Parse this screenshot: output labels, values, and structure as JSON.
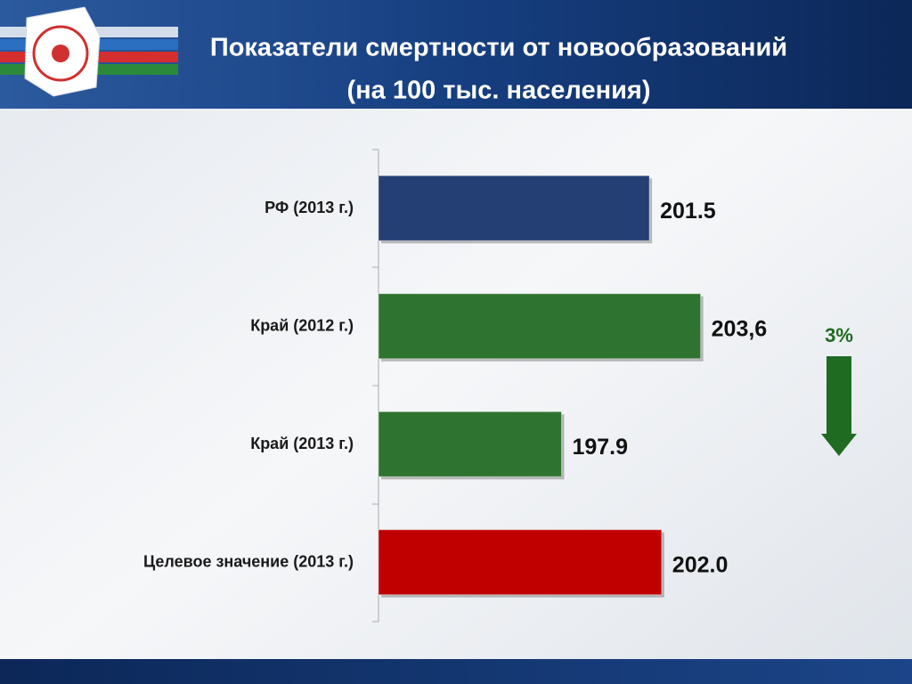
{
  "chart_data": {
    "type": "hbar",
    "title": "Показатели смертности от новообразований",
    "subtitle": "(на 100 тыс. населения)",
    "categories": [
      "РФ (2013 г.)",
      "Край (2012 г.)",
      "Край (2013 г.)",
      "Целевое значение (2013 г.)"
    ],
    "values": [
      201.5,
      203.6,
      197.9,
      202.0
    ],
    "value_labels": [
      "201.5",
      "203,6",
      "197.9",
      "202.0"
    ],
    "colors": [
      "#243f73",
      "#2e7430",
      "#2e7430",
      "#c00000"
    ],
    "xlim": [
      190.4,
      205
    ],
    "annotation": "3%",
    "annotation_color": "#1f6b21"
  }
}
